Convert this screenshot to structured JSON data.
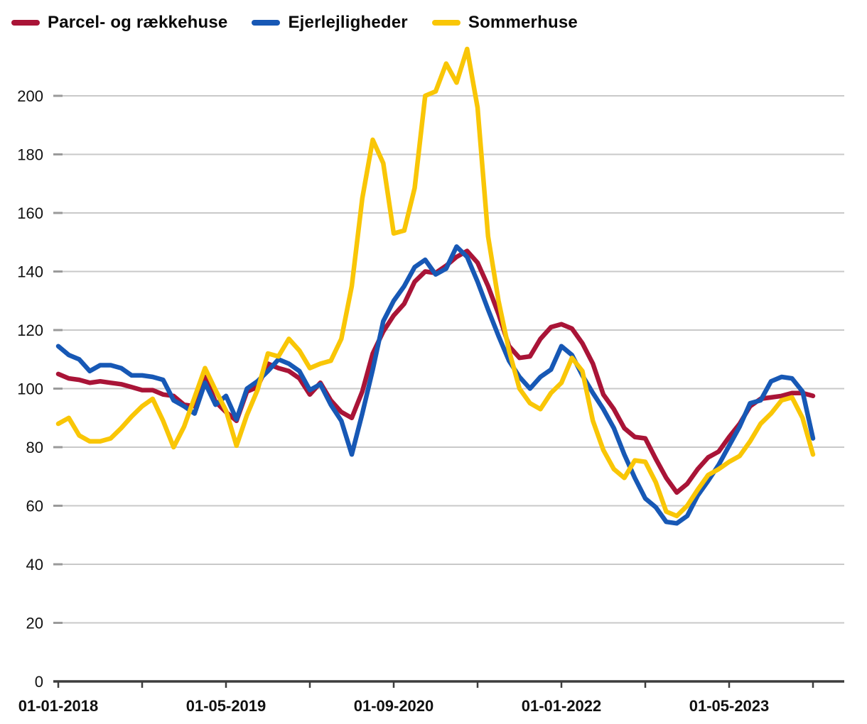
{
  "legend": [
    {
      "label": "Parcel- og rækkehuse",
      "color": "#a91437"
    },
    {
      "label": "Ejerlejligheder",
      "color": "#1758b5"
    },
    {
      "label": "Sommerhuse",
      "color": "#f9c606"
    }
  ],
  "chart_data": {
    "type": "line",
    "title": "",
    "xlabel": "",
    "ylabel": "",
    "grid": true,
    "legend_position": "top-left",
    "ylim": [
      0,
      218
    ],
    "yticks": [
      0,
      20,
      40,
      60,
      80,
      100,
      120,
      140,
      160,
      180,
      200
    ],
    "x_minor_tick_every_months": 8,
    "x_labeled_ticks": [
      "01-01-2018",
      "01-05-2019",
      "01-09-2020",
      "01-01-2022",
      "01-05-2023"
    ],
    "x": [
      "2018-01",
      "2018-02",
      "2018-03",
      "2018-04",
      "2018-05",
      "2018-06",
      "2018-07",
      "2018-08",
      "2018-09",
      "2018-10",
      "2018-11",
      "2018-12",
      "2019-01",
      "2019-02",
      "2019-03",
      "2019-04",
      "2019-05",
      "2019-06",
      "2019-07",
      "2019-08",
      "2019-09",
      "2019-10",
      "2019-11",
      "2019-12",
      "2020-01",
      "2020-02",
      "2020-03",
      "2020-04",
      "2020-05",
      "2020-06",
      "2020-07",
      "2020-08",
      "2020-09",
      "2020-10",
      "2020-11",
      "2020-12",
      "2021-01",
      "2021-02",
      "2021-03",
      "2021-04",
      "2021-05",
      "2021-06",
      "2021-07",
      "2021-08",
      "2021-09",
      "2021-10",
      "2021-11",
      "2021-12",
      "2022-01",
      "2022-02",
      "2022-03",
      "2022-04",
      "2022-05",
      "2022-06",
      "2022-07",
      "2022-08",
      "2022-09",
      "2022-10",
      "2022-11",
      "2022-12",
      "2023-01",
      "2023-02",
      "2023-03",
      "2023-04",
      "2023-05",
      "2023-06",
      "2023-07",
      "2023-08",
      "2023-09",
      "2023-10",
      "2023-11",
      "2023-12",
      "2024-01"
    ],
    "series": [
      {
        "name": "Parcel- og rækkehuse",
        "color": "#a91437",
        "values": [
          105,
          103.5,
          103,
          102,
          102.5,
          102,
          101.5,
          100.5,
          99.5,
          99.5,
          98,
          97.5,
          94.5,
          94,
          104,
          95.5,
          92,
          89,
          99,
          100.5,
          108.5,
          107,
          106,
          103.5,
          98,
          102,
          96,
          92,
          90,
          99,
          112,
          119.5,
          125,
          129,
          136.5,
          140,
          139.5,
          142,
          145,
          147,
          143,
          135,
          125.5,
          114.5,
          110.5,
          111,
          117,
          121,
          122,
          120.5,
          115.5,
          108.5,
          98,
          93,
          86.5,
          83.5,
          83,
          76,
          69.5,
          64.5,
          67.5,
          72.5,
          76.5,
          78.5,
          83.5,
          88,
          94,
          96.5,
          97,
          97.5,
          98.5,
          98.5,
          97.5
        ]
      },
      {
        "name": "Ejerlejligheder",
        "color": "#1758b5",
        "values": [
          114.5,
          111.5,
          110,
          106,
          108,
          108,
          107,
          104.5,
          104.5,
          104,
          103,
          96,
          94,
          91.5,
          102,
          94.5,
          97.5,
          89.5,
          100,
          102.5,
          106,
          110,
          108.5,
          106,
          99.5,
          101.5,
          94.5,
          89,
          77.5,
          91.5,
          106.5,
          123,
          130,
          135,
          141.5,
          144,
          139,
          141,
          148.5,
          145,
          136.5,
          127,
          118,
          109.5,
          104,
          100,
          104,
          106.5,
          114.5,
          111.5,
          104.5,
          98.5,
          93,
          86.5,
          77.5,
          69.5,
          62.5,
          59.5,
          54.5,
          54,
          56.5,
          63.5,
          68.5,
          74,
          80.5,
          87,
          95,
          96,
          102.5,
          104,
          103.5,
          99,
          83
        ]
      },
      {
        "name": "Sommerhuse",
        "color": "#f9c606",
        "values": [
          88,
          90,
          84,
          82,
          82,
          83,
          86.5,
          90.5,
          94,
          96.5,
          89,
          80,
          87,
          97,
          107,
          99.5,
          92.5,
          80.5,
          91,
          99.5,
          112,
          111,
          117,
          113,
          107,
          108.5,
          109.5,
          117,
          135,
          165,
          185,
          177,
          153,
          154,
          168.5,
          200,
          201.5,
          211,
          204.5,
          216,
          196,
          152,
          130,
          113,
          100,
          95,
          93,
          98.5,
          102,
          110.5,
          106,
          89,
          79,
          72.5,
          69.5,
          75.5,
          75,
          68,
          58,
          56.5,
          60,
          65.5,
          70.5,
          72.5,
          75,
          77,
          82,
          88,
          91.5,
          96,
          97,
          90,
          77.5
        ]
      }
    ]
  }
}
